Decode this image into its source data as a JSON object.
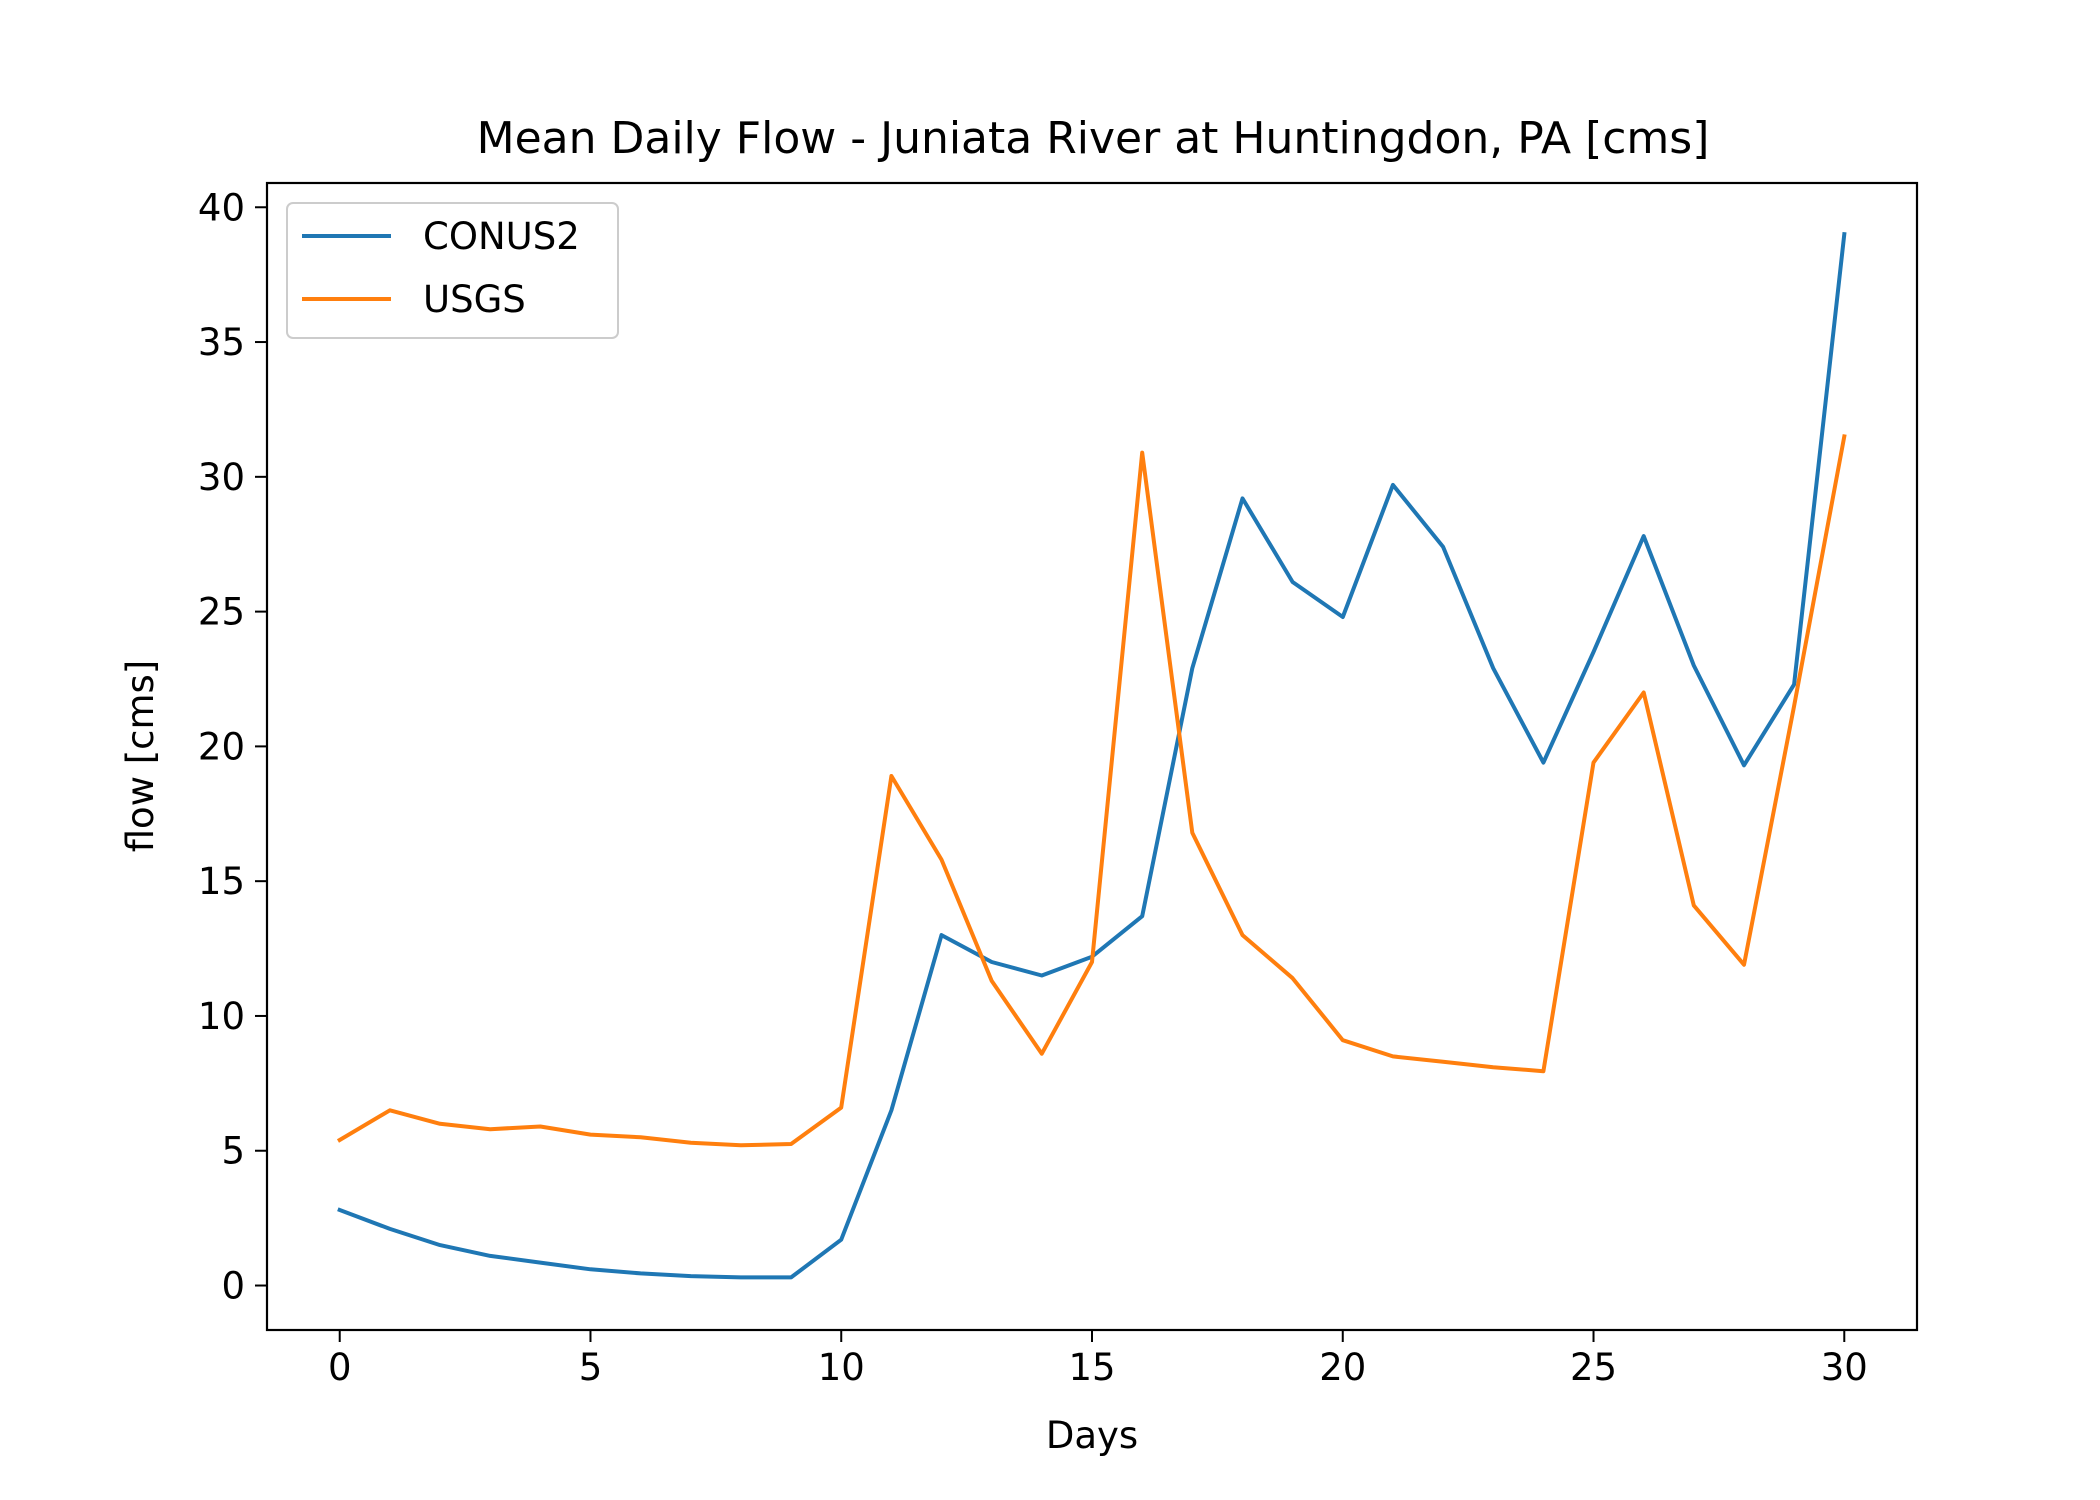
{
  "chart_data": {
    "type": "line",
    "title": "Mean Daily Flow - Juniata River at Huntingdon, PA [cms]",
    "xlabel": "Days",
    "ylabel": "flow [cms]",
    "xlim": [
      -1.45,
      31.45
    ],
    "ylim": [
      -1.65,
      40.9
    ],
    "xticks": [
      0,
      5,
      10,
      15,
      20,
      25,
      30
    ],
    "yticks": [
      0,
      5,
      10,
      15,
      20,
      25,
      30,
      35,
      40
    ],
    "x": [
      0,
      1,
      2,
      3,
      4,
      5,
      6,
      7,
      8,
      9,
      10,
      11,
      12,
      13,
      14,
      15,
      16,
      17,
      18,
      19,
      20,
      21,
      22,
      23,
      24,
      25,
      26,
      27,
      28,
      29,
      30
    ],
    "series": [
      {
        "name": "CONUS2",
        "color": "#1f77b4",
        "values": [
          2.8,
          2.1,
          1.5,
          1.1,
          0.85,
          0.6,
          0.45,
          0.35,
          0.3,
          0.3,
          1.7,
          6.5,
          13.0,
          12.0,
          11.5,
          12.2,
          13.7,
          22.9,
          29.2,
          26.1,
          24.8,
          29.7,
          27.4,
          22.9,
          19.4,
          23.5,
          27.8,
          23.0,
          19.3,
          22.3,
          39.0
        ]
      },
      {
        "name": "USGS",
        "color": "#ff7f0e",
        "values": [
          5.4,
          6.5,
          6.0,
          5.8,
          5.9,
          5.6,
          5.5,
          5.3,
          5.2,
          5.25,
          6.6,
          18.9,
          15.8,
          11.3,
          8.6,
          12.0,
          30.9,
          16.8,
          13.0,
          11.4,
          9.1,
          8.5,
          8.3,
          8.1,
          7.95,
          19.4,
          22.0,
          14.1,
          11.9,
          21.5,
          31.5
        ]
      }
    ],
    "legend": "top-left",
    "grid": false
  }
}
